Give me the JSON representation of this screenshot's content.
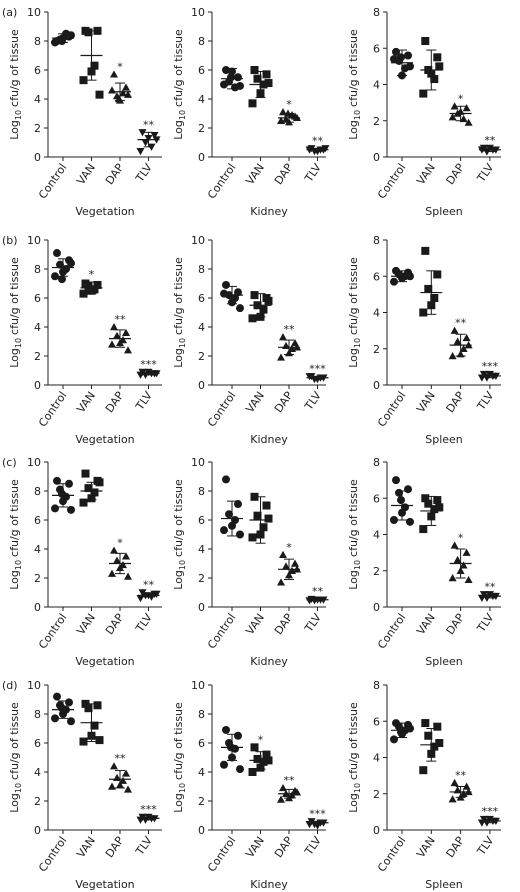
{
  "chart_data": [
    {
      "type": "dot",
      "panel_label": "(a)",
      "x_label": "Vegetation",
      "y_label": {
        "base": "Log",
        "sub": "10",
        "rest": "cfu/g of tissue"
      },
      "categories": [
        "Control",
        "VAN",
        "DAP",
        "TLV"
      ],
      "markers": [
        "circle",
        "square",
        "triangle",
        "triangle-down"
      ],
      "color": "#1a1a1a",
      "ylim": [
        0,
        10
      ],
      "yticks": [
        0,
        2,
        4,
        6,
        8,
        10
      ],
      "points": [
        [
          8.0,
          8.3,
          8.1,
          8.5,
          8.2,
          7.9,
          8.4,
          8.0
        ],
        [
          8.7,
          8.7,
          8.6,
          6.3,
          5.9,
          5.3,
          4.3
        ],
        [
          5.7,
          4.8,
          4.2,
          4.4,
          3.9,
          4.6,
          4.3,
          4.0
        ],
        [
          1.7,
          1.5,
          1.0,
          0.7,
          1.3,
          0.4,
          1.2
        ]
      ],
      "means": [
        8.2,
        7.0,
        4.5,
        1.2
      ],
      "sds": [
        0.3,
        1.7,
        0.6,
        0.5
      ],
      "annotations": [
        null,
        null,
        "*",
        "**"
      ]
    },
    {
      "type": "dot",
      "x_label": "Kidney",
      "y_label": {
        "base": "Log",
        "sub": "10",
        "rest": "cfu/g of tissue"
      },
      "categories": [
        "Control",
        "VAN",
        "DAP",
        "TLV"
      ],
      "markers": [
        "circle",
        "square",
        "triangle",
        "triangle-down"
      ],
      "color": "#1a1a1a",
      "ylim": [
        0,
        10
      ],
      "yticks": [
        0,
        2,
        4,
        6,
        8,
        10
      ],
      "points": [
        [
          6.0,
          5.5,
          5.2,
          4.8,
          5.9,
          5.0,
          4.9,
          5.5
        ],
        [
          6.0,
          5.7,
          5.4,
          5.0,
          4.4,
          3.7,
          5.1
        ],
        [
          3.1,
          2.8,
          2.6,
          2.9,
          2.4,
          2.5,
          2.7,
          3.0
        ],
        [
          0.6,
          0.5,
          0.4,
          0.5,
          0.4,
          0.5,
          0.6
        ]
      ],
      "means": [
        5.4,
        5.0,
        2.7,
        0.5
      ],
      "sds": [
        0.7,
        0.9,
        0.3,
        0.1
      ],
      "annotations": [
        null,
        null,
        "*",
        "**"
      ]
    },
    {
      "type": "dot",
      "x_label": "Spleen",
      "y_label": {
        "base": "Log",
        "sub": "10",
        "rest": "cfu/g of tissue"
      },
      "categories": [
        "Control",
        "VAN",
        "DAP",
        "TLV"
      ],
      "markers": [
        "circle",
        "square",
        "triangle",
        "triangle-down"
      ],
      "color": "#1a1a1a",
      "ylim": [
        0,
        8
      ],
      "yticks": [
        0,
        2,
        4,
        6,
        8
      ],
      "points": [
        [
          5.8,
          5.6,
          5.3,
          4.9,
          4.5,
          5.4,
          5.0,
          5.5
        ],
        [
          6.4,
          5.5,
          4.8,
          4.3,
          4.6,
          3.5,
          5.0
        ],
        [
          2.8,
          2.7,
          2.4,
          2.1,
          2.5,
          2.2,
          1.9
        ],
        [
          0.5,
          0.4,
          0.3,
          0.4,
          0.5,
          0.4
        ]
      ],
      "means": [
        5.2,
        4.8,
        2.4,
        0.4
      ],
      "sds": [
        0.7,
        1.1,
        0.4,
        0.1
      ],
      "annotations": [
        null,
        null,
        "*",
        "**"
      ]
    },
    {
      "type": "dot",
      "panel_label": "(b)",
      "x_label": "Vegetation",
      "y_label": {
        "base": "Log",
        "sub": "10",
        "rest": "cfu/g of tissue"
      },
      "categories": [
        "Control",
        "VAN",
        "DAP",
        "TLV"
      ],
      "markers": [
        "circle",
        "square",
        "triangle",
        "triangle-down"
      ],
      "color": "#1a1a1a",
      "ylim": [
        0,
        10
      ],
      "yticks": [
        0,
        2,
        4,
        6,
        8,
        10
      ],
      "points": [
        [
          9.1,
          8.6,
          8.3,
          8.0,
          7.8,
          7.5,
          8.4,
          7.3
        ],
        [
          7.0,
          6.9,
          6.8,
          6.6,
          6.5,
          6.3
        ],
        [
          4.0,
          3.6,
          3.4,
          3.1,
          2.9,
          2.8,
          2.4
        ],
        [
          0.9,
          0.8,
          0.7,
          0.8,
          0.9,
          0.7,
          0.8
        ]
      ],
      "means": [
        8.1,
        6.7,
        3.2,
        0.8
      ],
      "sds": [
        0.6,
        0.4,
        0.6,
        0.1
      ],
      "annotations": [
        null,
        "*",
        "**",
        "***"
      ]
    },
    {
      "type": "dot",
      "x_label": "Kidney",
      "y_label": {
        "base": "Log",
        "sub": "10",
        "rest": "cfu/g of tissue"
      },
      "categories": [
        "Control",
        "VAN",
        "DAP",
        "TLV"
      ],
      "markers": [
        "circle",
        "square",
        "triangle",
        "triangle-down"
      ],
      "color": "#1a1a1a",
      "ylim": [
        0,
        10
      ],
      "yticks": [
        0,
        2,
        4,
        6,
        8,
        10
      ],
      "points": [
        [
          6.9,
          6.4,
          6.2,
          6.0,
          5.7,
          6.3,
          5.3
        ],
        [
          6.2,
          6.0,
          5.5,
          5.2,
          4.7,
          4.6,
          5.8
        ],
        [
          3.3,
          2.9,
          2.7,
          2.5,
          2.2,
          1.9,
          2.6
        ],
        [
          0.6,
          0.5,
          0.4,
          0.5,
          0.4,
          0.6
        ]
      ],
      "means": [
        6.2,
        5.5,
        2.6,
        0.5
      ],
      "sds": [
        0.6,
        0.8,
        0.5,
        0.1
      ],
      "annotations": [
        null,
        null,
        "**",
        "***"
      ]
    },
    {
      "type": "dot",
      "x_label": "Spleen",
      "y_label": {
        "base": "Log",
        "sub": "10",
        "rest": "cfu/g of tissue"
      },
      "categories": [
        "Control",
        "VAN",
        "DAP",
        "TLV"
      ],
      "markers": [
        "circle",
        "square",
        "triangle",
        "triangle-down"
      ],
      "color": "#1a1a1a",
      "ylim": [
        0,
        8
      ],
      "yticks": [
        0,
        2,
        4,
        6,
        8
      ],
      "points": [
        [
          6.3,
          6.2,
          6.1,
          6.0,
          5.9,
          5.7,
          6.0
        ],
        [
          7.4,
          6.1,
          5.3,
          4.8,
          4.4,
          4.0
        ],
        [
          3.0,
          2.6,
          2.4,
          2.0,
          1.7,
          1.6,
          2.2
        ],
        [
          0.6,
          0.5,
          0.4,
          0.5,
          0.6,
          0.4
        ]
      ],
      "means": [
        6.0,
        5.1,
        2.2,
        0.5
      ],
      "sds": [
        0.3,
        1.2,
        0.6,
        0.1
      ],
      "annotations": [
        null,
        null,
        "**",
        "***"
      ]
    },
    {
      "type": "dot",
      "panel_label": "(c)",
      "x_label": "Vegetation",
      "y_label": {
        "base": "Log",
        "sub": "10",
        "rest": "cfu/g of tissue"
      },
      "categories": [
        "Control",
        "VAN",
        "DAP",
        "TLV"
      ],
      "markers": [
        "circle",
        "square",
        "triangle",
        "triangle-down"
      ],
      "color": "#1a1a1a",
      "ylim": [
        0,
        10
      ],
      "yticks": [
        0,
        2,
        4,
        6,
        8,
        10
      ],
      "points": [
        [
          8.7,
          8.5,
          8.1,
          7.6,
          7.3,
          6.8,
          6.7,
          7.8
        ],
        [
          9.2,
          8.7,
          8.2,
          7.9,
          7.5,
          7.2,
          8.6
        ],
        [
          3.9,
          3.5,
          3.2,
          2.9,
          2.7,
          2.3,
          2.1
        ],
        [
          1.0,
          0.9,
          0.8,
          0.7,
          0.8,
          0.6,
          0.9
        ]
      ],
      "means": [
        7.7,
        8.0,
        3.0,
        0.8
      ],
      "sds": [
        0.8,
        0.6,
        0.7,
        0.1
      ],
      "annotations": [
        null,
        null,
        "*",
        "**"
      ]
    },
    {
      "type": "dot",
      "x_label": "Kidney",
      "y_label": {
        "base": "Log",
        "sub": "10",
        "rest": "cfu/g of tissue"
      },
      "categories": [
        "Control",
        "VAN",
        "DAP",
        "TLV"
      ],
      "markers": [
        "circle",
        "square",
        "triangle",
        "triangle-down"
      ],
      "color": "#1a1a1a",
      "ylim": [
        0,
        10
      ],
      "yticks": [
        0,
        2,
        4,
        6,
        8,
        10
      ],
      "points": [
        [
          8.8,
          7.1,
          6.4,
          6.0,
          5.6,
          5.3,
          5.0
        ],
        [
          7.6,
          7.0,
          6.3,
          5.5,
          5.0,
          4.8,
          6.1
        ],
        [
          3.6,
          3.0,
          2.8,
          2.5,
          2.2,
          1.7,
          2.6
        ],
        [
          0.55,
          0.5,
          0.45,
          0.5,
          0.5,
          0.45
        ]
      ],
      "means": [
        6.1,
        6.0,
        2.6,
        0.5
      ],
      "sds": [
        1.2,
        1.6,
        0.7,
        0.05
      ],
      "annotations": [
        null,
        null,
        "*",
        "**"
      ]
    },
    {
      "type": "dot",
      "x_label": "Spleen",
      "y_label": {
        "base": "Log",
        "sub": "10",
        "rest": "cfu/g of tissue"
      },
      "categories": [
        "Control",
        "VAN",
        "DAP",
        "TLV"
      ],
      "markers": [
        "circle",
        "square",
        "triangle",
        "triangle-down"
      ],
      "color": "#1a1a1a",
      "ylim": [
        0,
        8
      ],
      "yticks": [
        0,
        2,
        4,
        6,
        8
      ],
      "points": [
        [
          7.0,
          6.5,
          6.3,
          5.5,
          5.2,
          4.8,
          4.7,
          5.9
        ],
        [
          6.0,
          5.9,
          5.7,
          5.4,
          5.0,
          4.3,
          5.5
        ],
        [
          3.4,
          3.0,
          2.6,
          2.3,
          2.0,
          1.6,
          1.5
        ],
        [
          0.7,
          0.6,
          0.5,
          0.6,
          0.7,
          0.5
        ]
      ],
      "means": [
        5.6,
        5.3,
        2.4,
        0.6
      ],
      "sds": [
        0.8,
        0.8,
        0.8,
        0.1
      ],
      "annotations": [
        null,
        null,
        "*",
        "**"
      ]
    },
    {
      "type": "dot",
      "panel_label": "(d)",
      "x_label": "Vegetation",
      "y_label": {
        "base": "Log",
        "sub": "10",
        "rest": "cfu/g of tissue"
      },
      "categories": [
        "Control",
        "VAN",
        "DAP",
        "TLV"
      ],
      "markers": [
        "circle",
        "square",
        "triangle",
        "triangle-down"
      ],
      "color": "#1a1a1a",
      "ylim": [
        0,
        10
      ],
      "yticks": [
        0,
        2,
        4,
        6,
        8,
        10
      ],
      "points": [
        [
          9.2,
          8.8,
          8.6,
          8.3,
          8.0,
          7.7,
          7.5,
          8.4
        ],
        [
          8.7,
          8.6,
          8.4,
          7.2,
          6.5,
          6.1,
          6.2
        ],
        [
          4.4,
          3.9,
          3.6,
          3.4,
          3.1,
          3.0,
          2.8
        ],
        [
          0.9,
          0.8,
          0.7,
          0.8,
          0.9,
          0.7
        ]
      ],
      "means": [
        8.3,
        7.4,
        3.5,
        0.8
      ],
      "sds": [
        0.6,
        1.3,
        0.6,
        0.1
      ],
      "annotations": [
        null,
        null,
        "**",
        "***"
      ]
    },
    {
      "type": "dot",
      "x_label": "Kidney",
      "y_label": {
        "base": "Log",
        "sub": "10",
        "rest": "cfu/g of tissue"
      },
      "categories": [
        "Control",
        "VAN",
        "DAP",
        "TLV"
      ],
      "markers": [
        "circle",
        "square",
        "triangle",
        "triangle-down"
      ],
      "color": "#1a1a1a",
      "ylim": [
        0,
        10
      ],
      "yticks": [
        0,
        2,
        4,
        6,
        8,
        10
      ],
      "points": [
        [
          6.9,
          6.5,
          6.0,
          5.6,
          5.0,
          4.5,
          4.2,
          5.7
        ],
        [
          5.7,
          5.2,
          4.9,
          4.7,
          4.3,
          4.0,
          4.8
        ],
        [
          2.9,
          2.7,
          2.5,
          2.4,
          2.2,
          2.1,
          2.6
        ],
        [
          0.6,
          0.5,
          0.4,
          0.5,
          0.3,
          0.4
        ]
      ],
      "means": [
        5.7,
        4.8,
        2.5,
        0.5
      ],
      "sds": [
        0.9,
        0.6,
        0.3,
        0.1
      ],
      "annotations": [
        null,
        "*",
        "**",
        "***"
      ]
    },
    {
      "type": "dot",
      "x_label": "Spleen",
      "y_label": {
        "base": "Log",
        "sub": "10",
        "rest": "cfu/g of tissue"
      },
      "categories": [
        "Control",
        "VAN",
        "DAP",
        "TLV"
      ],
      "markers": [
        "circle",
        "square",
        "triangle",
        "triangle-down"
      ],
      "color": "#1a1a1a",
      "ylim": [
        0,
        8
      ],
      "yticks": [
        0,
        2,
        4,
        6,
        8
      ],
      "points": [
        [
          5.9,
          5.8,
          5.7,
          5.5,
          5.3,
          5.0,
          5.6,
          5.4
        ],
        [
          5.9,
          5.7,
          5.2,
          4.6,
          4.2,
          3.3,
          4.8
        ],
        [
          2.6,
          2.4,
          2.2,
          2.0,
          1.8,
          1.7,
          2.1
        ],
        [
          0.6,
          0.5,
          0.4,
          0.5,
          0.6,
          0.4
        ]
      ],
      "means": [
        5.5,
        4.7,
        2.1,
        0.5
      ],
      "sds": [
        0.4,
        0.9,
        0.3,
        0.1
      ],
      "annotations": [
        null,
        null,
        "**",
        "***"
      ]
    }
  ]
}
